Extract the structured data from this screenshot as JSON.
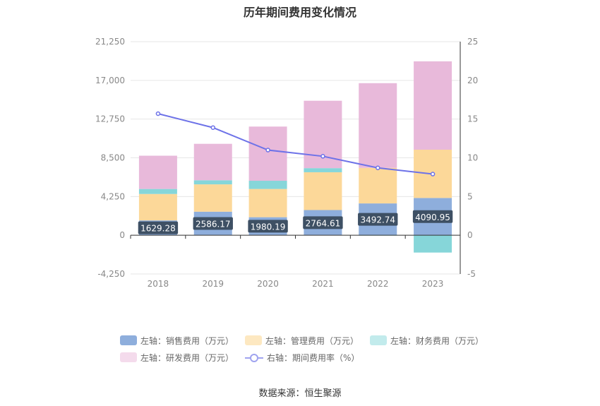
{
  "title": "历年期间费用变化情况",
  "source": "数据来源：恒生聚源",
  "legend": {
    "sales": "左轴：销售费用（万元）",
    "mgmt": "左轴：管理费用（万元）",
    "fin": "左轴：财务费用（万元）",
    "rd": "左轴：研发费用（万元）",
    "rate": "右轴：期间费用率（%）"
  },
  "colors": {
    "sales": "#8eaedc",
    "mgmt": "#fcd899",
    "fin": "#86d6d9",
    "rd": "#e8b9da",
    "rate": "#6d72e8",
    "label_bg": "#3e5064"
  },
  "chart_data": {
    "type": "bar",
    "title": "历年期间费用变化情况",
    "categories": [
      "2018",
      "2019",
      "2020",
      "2021",
      "2022",
      "2023"
    ],
    "series": [
      {
        "name": "左轴：销售费用（万元）",
        "axis": "left",
        "values": [
          1629.28,
          2586.17,
          1980.19,
          2764.61,
          3492.74,
          4090.95
        ]
      },
      {
        "name": "左轴：管理费用（万元）",
        "axis": "left",
        "values": [
          2900,
          3000,
          3100,
          4150,
          3900,
          5300
        ]
      },
      {
        "name": "左轴：财务费用（万元）",
        "axis": "left",
        "values": [
          550,
          450,
          900,
          450,
          -40,
          -1900
        ]
      },
      {
        "name": "左轴：研发费用（万元）",
        "axis": "left",
        "values": [
          3650,
          4000,
          5950,
          7400,
          9300,
          9700
        ]
      },
      {
        "name": "右轴：期间费用率（%）",
        "axis": "right",
        "type": "line",
        "values": [
          15.7,
          13.9,
          11.0,
          10.2,
          8.7,
          7.9
        ]
      }
    ],
    "data_labels": [
      "1629.28",
      "2586.17",
      "1980.19",
      "2764.61",
      "3492.74",
      "4090.95"
    ],
    "y_left": {
      "min": -4250,
      "max": 21250,
      "ticks": [
        "21,250",
        "17,000",
        "12,750",
        "8,500",
        "4,250",
        "0",
        "-4,250"
      ]
    },
    "y_right": {
      "min": -5,
      "max": 25,
      "ticks": [
        "25",
        "20",
        "15",
        "10",
        "5",
        "0",
        "-5"
      ]
    },
    "stacked": true,
    "grid": true,
    "legend_position": "bottom"
  }
}
